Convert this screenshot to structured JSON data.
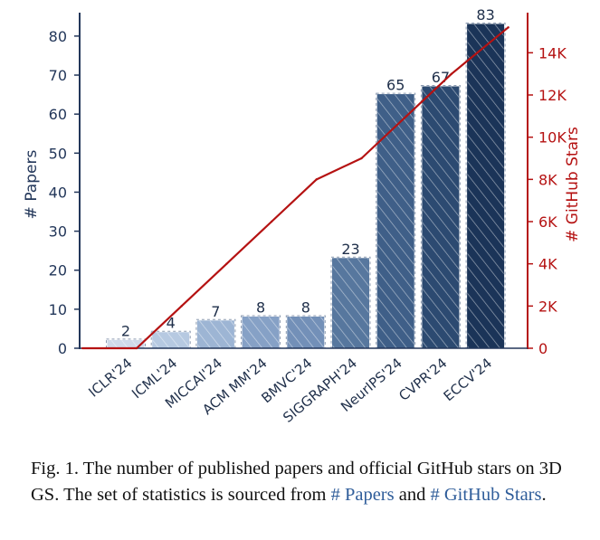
{
  "chart_data": {
    "type": "bar",
    "categories": [
      "ICLR'24",
      "ICML'24",
      "MICCAI'24",
      "ACM MM'24",
      "BMVC'24",
      "SIGGRAPH'24",
      "NeurIPS'24",
      "CVPR'24",
      "ECCV'24"
    ],
    "series": [
      {
        "name": "# Papers",
        "type": "bar",
        "axis": "left",
        "values": [
          2,
          4,
          7,
          8,
          8,
          23,
          65,
          67,
          83
        ]
      },
      {
        "name": "# GitHub Stars",
        "type": "line",
        "axis": "right",
        "values": [
          0,
          2000,
          4000,
          6000,
          8000,
          9000,
          11000,
          13000,
          15200
        ]
      }
    ],
    "ylabel": "# Papers",
    "ylim": [
      0,
      86
    ],
    "yticks": [
      "0",
      "10",
      "20",
      "30",
      "40",
      "50",
      "60",
      "70",
      "80"
    ],
    "y2label": "# GitHub Stars",
    "y2lim": [
      0,
      15900
    ],
    "y2ticks": [
      "0",
      "2K",
      "4K",
      "6K",
      "8K",
      "10K",
      "12K",
      "14K"
    ],
    "colors": {
      "bars": [
        "#cfdaea",
        "#b6c9e1",
        "#9db5d4",
        "#86a1c6",
        "#7390b8",
        "#57779e",
        "#3f5f88",
        "#2c4a71",
        "#1b3458"
      ],
      "axis_left": "#23375a",
      "line": "#b51212"
    }
  },
  "caption": {
    "prefix": "Fig. 1.",
    "text": "The number of published papers and official GitHub stars on 3D GS. The set of statistics is sourced from",
    "link1": "# Papers",
    "joiner": "and",
    "link2": "# GitHub Stars",
    "suffix": "."
  }
}
